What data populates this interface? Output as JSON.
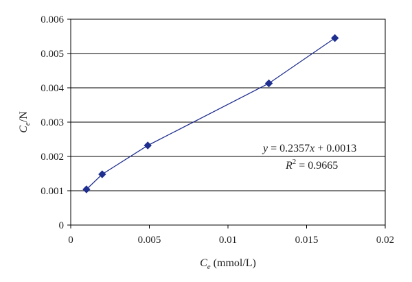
{
  "chart_data": {
    "type": "scatter",
    "title": "",
    "x_axis": {
      "min": 0,
      "max": 0.02,
      "ticks": [
        0,
        0.005,
        0.01,
        0.015,
        0.02
      ],
      "tick_labels": [
        "0",
        "0.005",
        "0.01",
        "0.015",
        "0.02"
      ]
    },
    "y_axis": {
      "min": 0,
      "max": 0.006,
      "ticks": [
        0,
        0.001,
        0.002,
        0.003,
        0.004,
        0.005,
        0.006
      ],
      "tick_labels": [
        "0",
        "0.001",
        "0.002",
        "0.003",
        "0.004",
        "0.005",
        "0.006"
      ]
    },
    "xlabel": {
      "main": "C",
      "sub": "e",
      "suffix": " (mmol/L)"
    },
    "ylabel": {
      "main": "C",
      "sub": "e",
      "suffix": "/N"
    },
    "grid": {
      "horizontal": true,
      "vertical": false
    },
    "series": [
      {
        "color": "#1f2f8f",
        "marker": "diamond",
        "connected": true,
        "points": [
          {
            "x": 0.001,
            "y": 0.00104
          },
          {
            "x": 0.002,
            "y": 0.00148
          },
          {
            "x": 0.0049,
            "y": 0.00232
          },
          {
            "x": 0.0126,
            "y": 0.00413
          },
          {
            "x": 0.0168,
            "y": 0.00545
          }
        ]
      }
    ],
    "annotations": {
      "equation": {
        "y": "y",
        "rest": " = 0.2357",
        "x": "x",
        "tail": " + 0.0013"
      },
      "r_squared": {
        "R": "R",
        "exp": "2",
        "rest": " = 0.9665"
      }
    }
  }
}
